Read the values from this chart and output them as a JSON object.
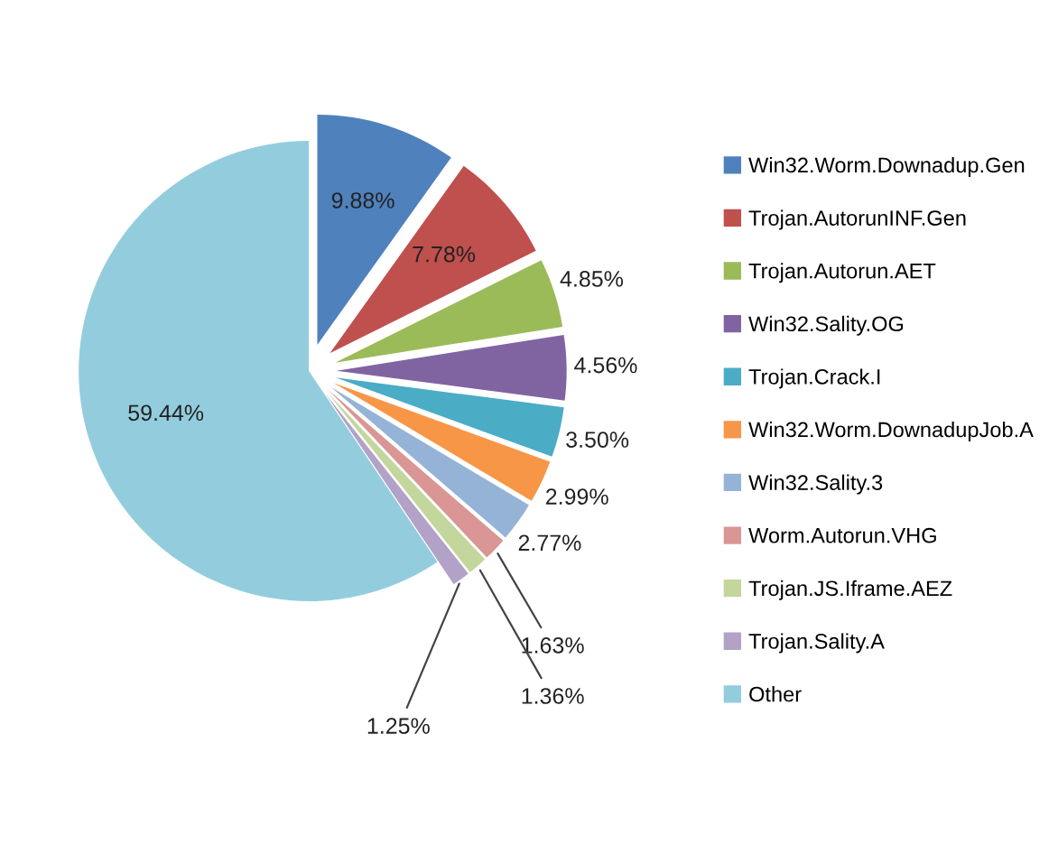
{
  "chart_data": {
    "type": "pie",
    "categories": [
      "Win32.Worm.Downadup.Gen",
      "Trojan.AutorunINF.Gen",
      "Trojan.Autorun.AET",
      "Win32.Sality.OG",
      "Trojan.Crack.I",
      "Win32.Worm.DownadupJob.A",
      "Win32.Sality.3",
      "Worm.Autorun.VHG",
      "Trojan.JS.Iframe.AEZ",
      "Trojan.Sality.A",
      "Other"
    ],
    "values": [
      9.88,
      7.78,
      4.85,
      4.56,
      3.5,
      2.99,
      2.77,
      1.63,
      1.36,
      1.25,
      59.44
    ],
    "value_labels": [
      "9.88%",
      "7.78%",
      "4.85%",
      "4.56%",
      "3.50%",
      "2.99%",
      "2.77%",
      "1.63%",
      "1.36%",
      "1.25%",
      "59.44%"
    ],
    "colors": [
      "#4f81bd",
      "#c0504d",
      "#9bbb59",
      "#8064a2",
      "#4bacc6",
      "#f79646",
      "#95b3d7",
      "#d99694",
      "#c3d69b",
      "#b3a2c7",
      "#93cddd"
    ],
    "legend": "right"
  }
}
